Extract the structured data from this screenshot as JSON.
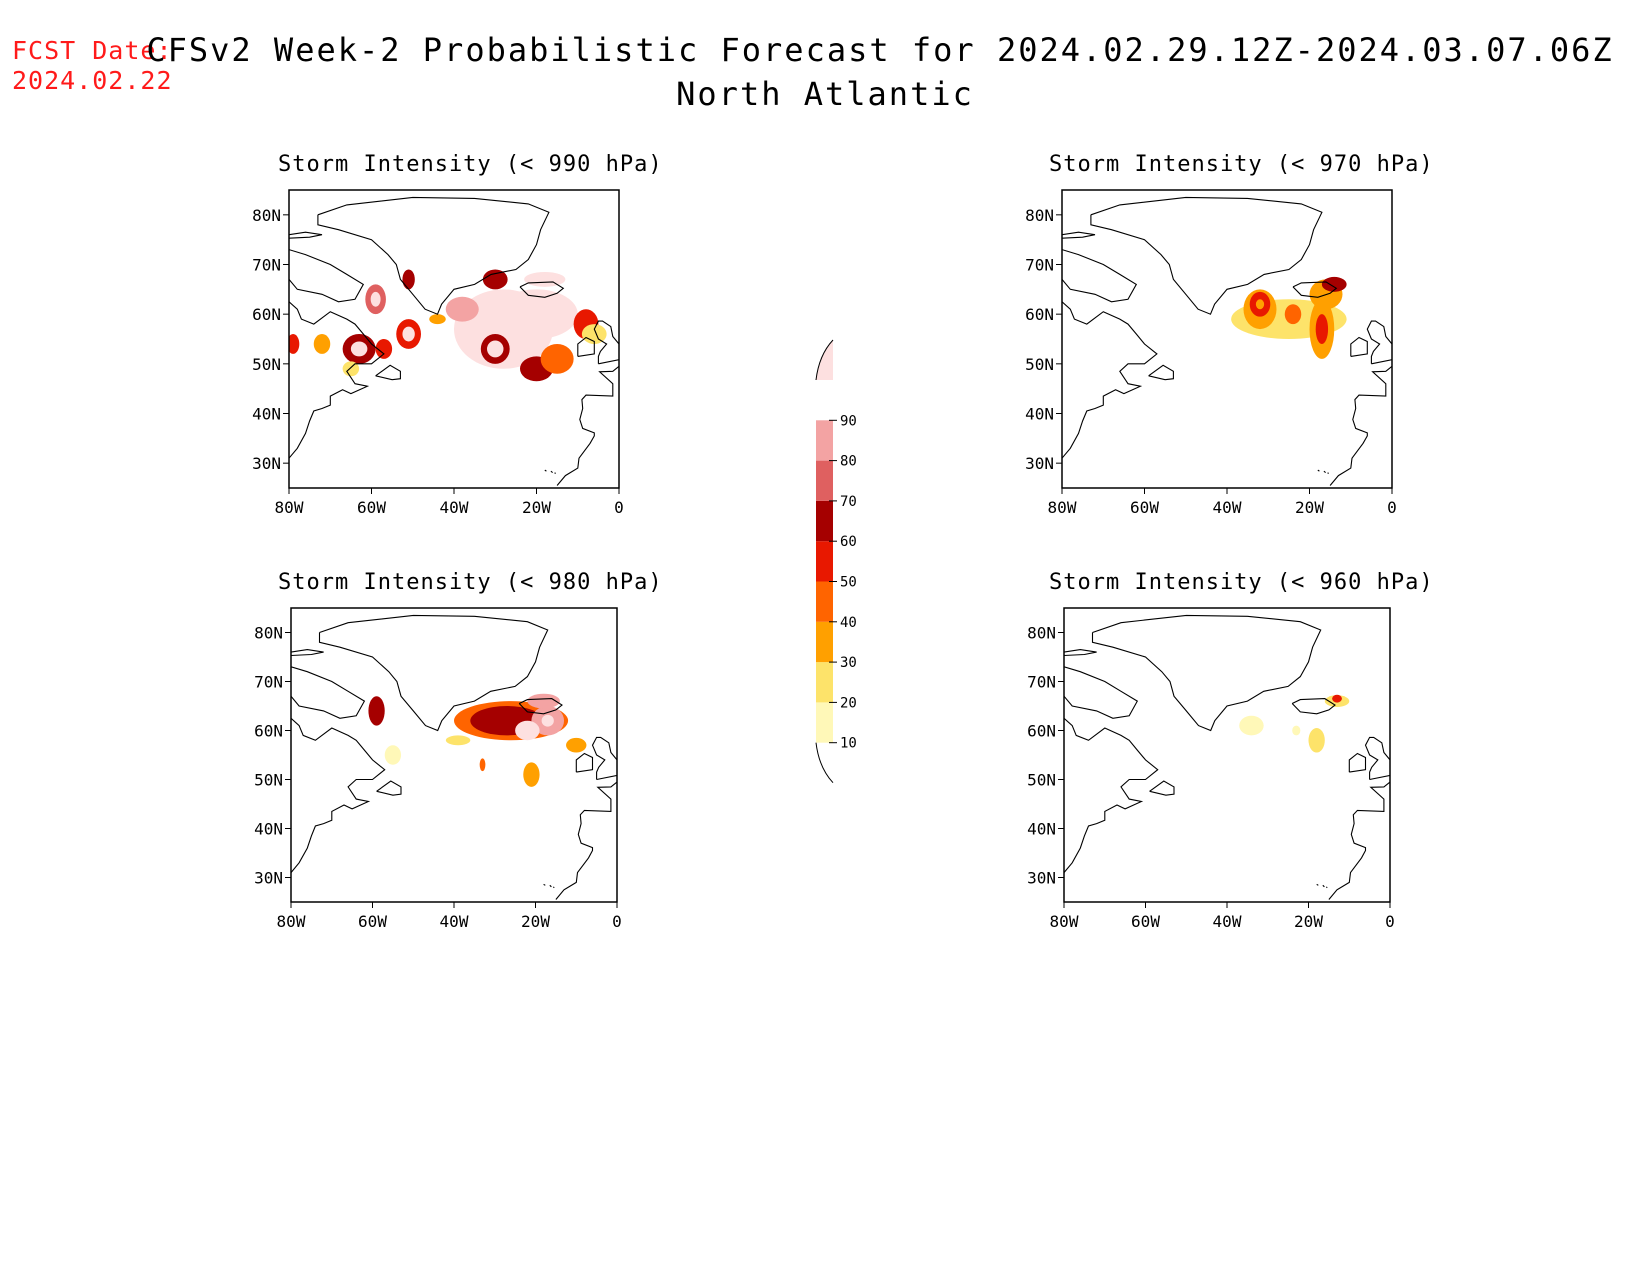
{
  "header": {
    "fcst_label": "FCST Date:",
    "fcst_date": "2024.02.22",
    "title": "CFSv2 Week-2 Probabilistic Forecast for 2024.02.29.12Z-2024.03.07.06Z",
    "subtitle": "North Atlantic"
  },
  "axes": {
    "x_ticks": [
      "80W",
      "60W",
      "40W",
      "20W",
      "0"
    ],
    "y_ticks": [
      "80N",
      "70N",
      "60N",
      "50N",
      "40N",
      "30N"
    ],
    "x_range_lon": [
      -80,
      0
    ],
    "y_range_lat": [
      25,
      85
    ]
  },
  "colorbar": {
    "levels": [
      "10",
      "20",
      "30",
      "40",
      "50",
      "60",
      "70",
      "80",
      "90"
    ],
    "colors": [
      "#fff8b8",
      "#fde36a",
      "#ffa000",
      "#ff6400",
      "#e81800",
      "#a50000",
      "#df6060",
      "#f3a3a3",
      "#fde0e0"
    ]
  },
  "panels": [
    {
      "id": "p990",
      "title": "Storm Intensity (< 990 hPa)"
    },
    {
      "id": "p970",
      "title": "Storm Intensity (< 970 hPa)"
    },
    {
      "id": "p980",
      "title": "Storm Intensity (< 980 hPa)"
    },
    {
      "id": "p960",
      "title": "Storm Intensity (< 960 hPa)"
    }
  ],
  "probability_fields": {
    "p990": [
      {
        "lon": -28,
        "lat": 57,
        "rx": 12,
        "ry": 8,
        "level": 9
      },
      {
        "lon": -20,
        "lat": 60,
        "rx": 10,
        "ry": 5,
        "level": 9
      },
      {
        "lon": -30,
        "lat": 67,
        "rx": 3,
        "ry": 2,
        "level": 6
      },
      {
        "lon": -18,
        "lat": 67,
        "rx": 5,
        "ry": 1.5,
        "level": 9
      },
      {
        "lon": -30,
        "lat": 53,
        "rx": 3.5,
        "ry": 3,
        "level": 6
      },
      {
        "lon": -30,
        "lat": 53,
        "rx": 2,
        "ry": 1.7,
        "level": 9
      },
      {
        "lon": -20,
        "lat": 49,
        "rx": 4,
        "ry": 2.5,
        "level": 6
      },
      {
        "lon": -15,
        "lat": 51,
        "rx": 4,
        "ry": 3,
        "level": 4
      },
      {
        "lon": -8,
        "lat": 58,
        "rx": 3,
        "ry": 3,
        "level": 5
      },
      {
        "lon": -6,
        "lat": 56,
        "rx": 3,
        "ry": 2,
        "level": 2
      },
      {
        "lon": -38,
        "lat": 61,
        "rx": 4,
        "ry": 2.5,
        "level": 8
      },
      {
        "lon": -44,
        "lat": 59,
        "rx": 2,
        "ry": 1,
        "level": 3
      },
      {
        "lon": -59,
        "lat": 63,
        "rx": 2.5,
        "ry": 3,
        "level": 7
      },
      {
        "lon": -59,
        "lat": 63,
        "rx": 1.2,
        "ry": 1.5,
        "level": 9
      },
      {
        "lon": -51,
        "lat": 67,
        "rx": 1.5,
        "ry": 2,
        "level": 6
      },
      {
        "lon": -51,
        "lat": 56,
        "rx": 3,
        "ry": 3,
        "level": 5
      },
      {
        "lon": -51,
        "lat": 56,
        "rx": 1.5,
        "ry": 1.5,
        "level": 9
      },
      {
        "lon": -63,
        "lat": 53,
        "rx": 4,
        "ry": 3,
        "level": 6
      },
      {
        "lon": -63,
        "lat": 53,
        "rx": 2,
        "ry": 1.5,
        "level": 9
      },
      {
        "lon": -57,
        "lat": 53,
        "rx": 2,
        "ry": 2,
        "level": 5
      },
      {
        "lon": -72,
        "lat": 54,
        "rx": 2,
        "ry": 2,
        "level": 3
      },
      {
        "lon": -79,
        "lat": 54,
        "rx": 1.5,
        "ry": 2,
        "level": 5
      },
      {
        "lon": -65,
        "lat": 49,
        "rx": 2,
        "ry": 1.5,
        "level": 2
      }
    ],
    "p970": [
      {
        "lon": -25,
        "lat": 59,
        "rx": 14,
        "ry": 4,
        "level": 2
      },
      {
        "lon": -32,
        "lat": 61,
        "rx": 4,
        "ry": 4,
        "level": 3
      },
      {
        "lon": -32,
        "lat": 62,
        "rx": 2.5,
        "ry": 2.5,
        "level": 5
      },
      {
        "lon": -32,
        "lat": 62,
        "rx": 1,
        "ry": 1,
        "level": 3
      },
      {
        "lon": -24,
        "lat": 60,
        "rx": 2,
        "ry": 2,
        "level": 4
      },
      {
        "lon": -17,
        "lat": 57,
        "rx": 3,
        "ry": 6,
        "level": 3
      },
      {
        "lon": -17,
        "lat": 57,
        "rx": 1.5,
        "ry": 3,
        "level": 5
      },
      {
        "lon": -16,
        "lat": 64,
        "rx": 4,
        "ry": 3,
        "level": 3
      },
      {
        "lon": -14,
        "lat": 66,
        "rx": 3,
        "ry": 1.5,
        "level": 6
      }
    ],
    "p980": [
      {
        "lon": -26,
        "lat": 62,
        "rx": 14,
        "ry": 4,
        "level": 4
      },
      {
        "lon": -27,
        "lat": 62,
        "rx": 9,
        "ry": 3,
        "level": 6
      },
      {
        "lon": -17,
        "lat": 62,
        "rx": 4,
        "ry": 3,
        "level": 8
      },
      {
        "lon": -17,
        "lat": 62,
        "rx": 1.5,
        "ry": 1.2,
        "level": 9
      },
      {
        "lon": -22,
        "lat": 60,
        "rx": 3,
        "ry": 2,
        "level": 9
      },
      {
        "lon": -18,
        "lat": 66,
        "rx": 4,
        "ry": 1.5,
        "level": 8
      },
      {
        "lon": -21,
        "lat": 51,
        "rx": 2,
        "ry": 2.5,
        "level": 3
      },
      {
        "lon": -10,
        "lat": 57,
        "rx": 2.5,
        "ry": 1.5,
        "level": 3
      },
      {
        "lon": -39,
        "lat": 58,
        "rx": 3,
        "ry": 1,
        "level": 2
      },
      {
        "lon": -59,
        "lat": 64,
        "rx": 2,
        "ry": 3,
        "level": 6
      },
      {
        "lon": -55,
        "lat": 55,
        "rx": 2,
        "ry": 2,
        "level": 1
      },
      {
        "lon": -33,
        "lat": 53,
        "rx": 0.7,
        "ry": 1.3,
        "level": 4
      }
    ],
    "p960": [
      {
        "lon": -34,
        "lat": 61,
        "rx": 3,
        "ry": 2,
        "level": 1
      },
      {
        "lon": -23,
        "lat": 60,
        "rx": 1,
        "ry": 1,
        "level": 1
      },
      {
        "lon": -18,
        "lat": 58,
        "rx": 2,
        "ry": 2.5,
        "level": 2
      },
      {
        "lon": -13,
        "lat": 66,
        "rx": 3,
        "ry": 1.2,
        "level": 2
      },
      {
        "lon": -13,
        "lat": 66.5,
        "rx": 1.2,
        "ry": 0.8,
        "level": 5
      }
    ]
  }
}
